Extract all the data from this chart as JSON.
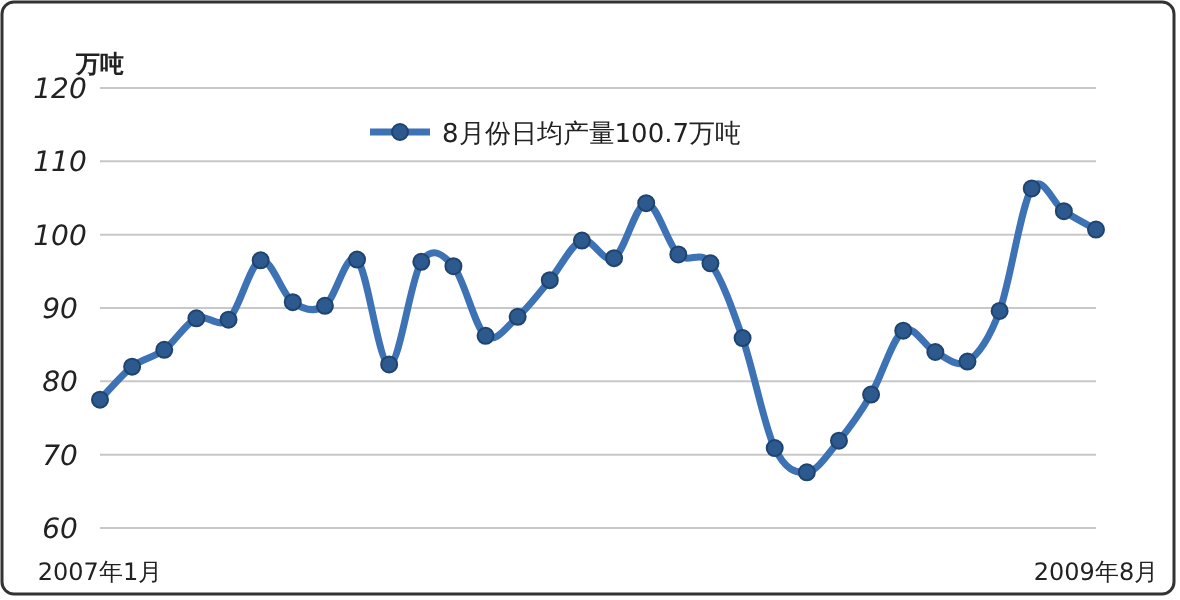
{
  "chart_data": {
    "type": "line",
    "ylabel": "万吨",
    "categories": [
      "2007年1月",
      null,
      null,
      null,
      null,
      null,
      null,
      null,
      null,
      null,
      null,
      null,
      null,
      null,
      null,
      null,
      null,
      null,
      null,
      null,
      null,
      null,
      null,
      null,
      null,
      null,
      null,
      null,
      null,
      null,
      null,
      "2009年8月"
    ],
    "series": [
      {
        "name": "8月份日均产量100.7万吨",
        "color": "#3d72b4",
        "values": [
          77.5,
          82,
          84.3,
          88.6,
          88.4,
          96.5,
          90.8,
          90.3,
          96.6,
          82.3,
          96.3,
          95.7,
          86.2,
          88.8,
          93.8,
          99.2,
          96.8,
          104.3,
          97.3,
          96.1,
          85.9,
          70.9,
          67.6,
          71.9,
          78.2,
          86.9,
          84.0,
          82.7,
          89.6,
          106.3,
          103.2,
          100.7
        ]
      }
    ],
    "ylim": [
      60,
      120
    ],
    "yticks": [
      60,
      70,
      80,
      90,
      100,
      110,
      120
    ],
    "grid": "y",
    "legend": "top",
    "marker": "circle",
    "line_style": "solid"
  }
}
